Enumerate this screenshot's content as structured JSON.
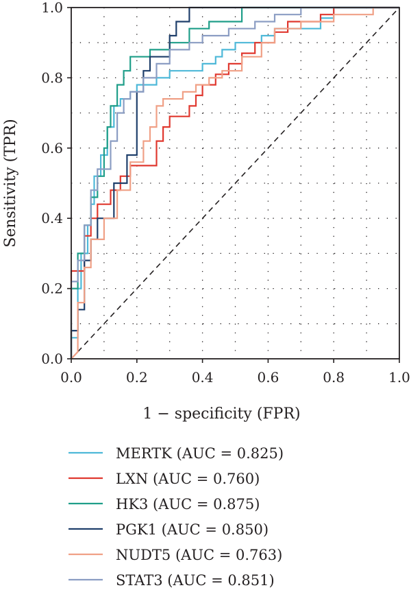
{
  "chart_data": {
    "type": "line",
    "title": "",
    "xlabel": "1 − specificity (FPR)",
    "ylabel": "Sensitivity (TPR)",
    "xlim": [
      0,
      1
    ],
    "ylim": [
      0,
      1
    ],
    "xticks": [
      "0.0",
      "0.2",
      "0.4",
      "0.6",
      "0.8",
      "1.0"
    ],
    "yticks": [
      "0.0",
      "0.2",
      "0.4",
      "0.6",
      "0.8",
      "1.0"
    ],
    "grid": "dotted",
    "legend_position": "below",
    "diagonal_reference": true,
    "series": [
      {
        "name": "MERTK (AUC = 0.825)",
        "color": "#4db8d8",
        "points": [
          [
            0,
            0
          ],
          [
            0,
            0.06
          ],
          [
            0.02,
            0.06
          ],
          [
            0.02,
            0.2
          ],
          [
            0.03,
            0.2
          ],
          [
            0.03,
            0.3
          ],
          [
            0.05,
            0.3
          ],
          [
            0.05,
            0.38
          ],
          [
            0.06,
            0.38
          ],
          [
            0.06,
            0.44
          ],
          [
            0.07,
            0.44
          ],
          [
            0.07,
            0.52
          ],
          [
            0.09,
            0.52
          ],
          [
            0.09,
            0.58
          ],
          [
            0.11,
            0.58
          ],
          [
            0.11,
            0.66
          ],
          [
            0.13,
            0.66
          ],
          [
            0.13,
            0.72
          ],
          [
            0.15,
            0.72
          ],
          [
            0.15,
            0.74
          ],
          [
            0.18,
            0.74
          ],
          [
            0.18,
            0.76
          ],
          [
            0.2,
            0.76
          ],
          [
            0.2,
            0.78
          ],
          [
            0.26,
            0.78
          ],
          [
            0.26,
            0.8
          ],
          [
            0.3,
            0.8
          ],
          [
            0.3,
            0.82
          ],
          [
            0.4,
            0.82
          ],
          [
            0.4,
            0.84
          ],
          [
            0.44,
            0.84
          ],
          [
            0.44,
            0.86
          ],
          [
            0.46,
            0.86
          ],
          [
            0.46,
            0.88
          ],
          [
            0.5,
            0.88
          ],
          [
            0.5,
            0.9
          ],
          [
            0.58,
            0.9
          ],
          [
            0.58,
            0.92
          ],
          [
            0.62,
            0.92
          ],
          [
            0.62,
            0.94
          ],
          [
            0.76,
            0.94
          ],
          [
            0.76,
            0.97
          ],
          [
            0.8,
            0.97
          ],
          [
            0.8,
            1.0
          ],
          [
            1,
            1
          ]
        ]
      },
      {
        "name": "LXN (AUC = 0.760)",
        "color": "#e0382f",
        "points": [
          [
            0,
            0
          ],
          [
            0,
            0.25
          ],
          [
            0.04,
            0.25
          ],
          [
            0.04,
            0.35
          ],
          [
            0.06,
            0.35
          ],
          [
            0.06,
            0.4
          ],
          [
            0.08,
            0.4
          ],
          [
            0.08,
            0.44
          ],
          [
            0.12,
            0.44
          ],
          [
            0.12,
            0.48
          ],
          [
            0.15,
            0.48
          ],
          [
            0.15,
            0.52
          ],
          [
            0.18,
            0.52
          ],
          [
            0.18,
            0.55
          ],
          [
            0.26,
            0.55
          ],
          [
            0.26,
            0.62
          ],
          [
            0.28,
            0.62
          ],
          [
            0.28,
            0.66
          ],
          [
            0.3,
            0.66
          ],
          [
            0.3,
            0.69
          ],
          [
            0.36,
            0.69
          ],
          [
            0.36,
            0.72
          ],
          [
            0.38,
            0.72
          ],
          [
            0.38,
            0.75
          ],
          [
            0.4,
            0.75
          ],
          [
            0.4,
            0.78
          ],
          [
            0.44,
            0.78
          ],
          [
            0.44,
            0.81
          ],
          [
            0.48,
            0.81
          ],
          [
            0.48,
            0.84
          ],
          [
            0.52,
            0.84
          ],
          [
            0.52,
            0.87
          ],
          [
            0.56,
            0.87
          ],
          [
            0.56,
            0.9
          ],
          [
            0.62,
            0.9
          ],
          [
            0.62,
            0.93
          ],
          [
            0.66,
            0.93
          ],
          [
            0.66,
            0.96
          ],
          [
            0.76,
            0.96
          ],
          [
            0.76,
            0.98
          ],
          [
            0.8,
            0.98
          ],
          [
            0.8,
            1.0
          ],
          [
            1,
            1
          ]
        ]
      },
      {
        "name": "HK3 (AUC = 0.875)",
        "color": "#1f9e89",
        "points": [
          [
            0,
            0
          ],
          [
            0,
            0.2
          ],
          [
            0.02,
            0.2
          ],
          [
            0.02,
            0.3
          ],
          [
            0.04,
            0.3
          ],
          [
            0.04,
            0.38
          ],
          [
            0.06,
            0.38
          ],
          [
            0.06,
            0.46
          ],
          [
            0.08,
            0.46
          ],
          [
            0.08,
            0.52
          ],
          [
            0.1,
            0.52
          ],
          [
            0.1,
            0.6
          ],
          [
            0.11,
            0.6
          ],
          [
            0.11,
            0.66
          ],
          [
            0.12,
            0.66
          ],
          [
            0.12,
            0.72
          ],
          [
            0.14,
            0.72
          ],
          [
            0.14,
            0.78
          ],
          [
            0.16,
            0.78
          ],
          [
            0.16,
            0.82
          ],
          [
            0.18,
            0.82
          ],
          [
            0.18,
            0.86
          ],
          [
            0.24,
            0.86
          ],
          [
            0.24,
            0.88
          ],
          [
            0.3,
            0.88
          ],
          [
            0.3,
            0.9
          ],
          [
            0.36,
            0.9
          ],
          [
            0.36,
            0.94
          ],
          [
            0.42,
            0.94
          ],
          [
            0.42,
            0.96
          ],
          [
            0.52,
            0.96
          ],
          [
            0.52,
            1.0
          ],
          [
            1,
            1
          ]
        ]
      },
      {
        "name": "PGK1 (AUC = 0.850)",
        "color": "#1f3f6b",
        "points": [
          [
            0,
            0
          ],
          [
            0,
            0.08
          ],
          [
            0.02,
            0.08
          ],
          [
            0.02,
            0.14
          ],
          [
            0.04,
            0.14
          ],
          [
            0.04,
            0.28
          ],
          [
            0.06,
            0.28
          ],
          [
            0.06,
            0.34
          ],
          [
            0.08,
            0.34
          ],
          [
            0.08,
            0.4
          ],
          [
            0.13,
            0.4
          ],
          [
            0.13,
            0.5
          ],
          [
            0.17,
            0.5
          ],
          [
            0.17,
            0.58
          ],
          [
            0.2,
            0.58
          ],
          [
            0.2,
            0.76
          ],
          [
            0.22,
            0.76
          ],
          [
            0.22,
            0.82
          ],
          [
            0.24,
            0.82
          ],
          [
            0.24,
            0.86
          ],
          [
            0.3,
            0.86
          ],
          [
            0.3,
            0.92
          ],
          [
            0.32,
            0.92
          ],
          [
            0.32,
            0.96
          ],
          [
            0.36,
            0.96
          ],
          [
            0.36,
            1.0
          ],
          [
            1,
            1
          ]
        ]
      },
      {
        "name": "NUDT5 (AUC = 0.763)",
        "color": "#f0a086",
        "points": [
          [
            0,
            0
          ],
          [
            0.02,
            0.02
          ],
          [
            0.02,
            0.16
          ],
          [
            0.04,
            0.16
          ],
          [
            0.04,
            0.26
          ],
          [
            0.06,
            0.26
          ],
          [
            0.06,
            0.34
          ],
          [
            0.1,
            0.34
          ],
          [
            0.1,
            0.4
          ],
          [
            0.14,
            0.4
          ],
          [
            0.14,
            0.48
          ],
          [
            0.18,
            0.48
          ],
          [
            0.18,
            0.56
          ],
          [
            0.22,
            0.56
          ],
          [
            0.22,
            0.62
          ],
          [
            0.24,
            0.62
          ],
          [
            0.24,
            0.66
          ],
          [
            0.26,
            0.66
          ],
          [
            0.26,
            0.72
          ],
          [
            0.28,
            0.72
          ],
          [
            0.28,
            0.74
          ],
          [
            0.34,
            0.74
          ],
          [
            0.34,
            0.76
          ],
          [
            0.38,
            0.76
          ],
          [
            0.38,
            0.78
          ],
          [
            0.42,
            0.78
          ],
          [
            0.42,
            0.8
          ],
          [
            0.46,
            0.8
          ],
          [
            0.46,
            0.82
          ],
          [
            0.52,
            0.82
          ],
          [
            0.52,
            0.86
          ],
          [
            0.58,
            0.86
          ],
          [
            0.58,
            0.9
          ],
          [
            0.62,
            0.9
          ],
          [
            0.62,
            0.94
          ],
          [
            0.7,
            0.94
          ],
          [
            0.7,
            0.96
          ],
          [
            0.8,
            0.96
          ],
          [
            0.8,
            0.98
          ],
          [
            0.92,
            0.98
          ],
          [
            0.92,
            1.0
          ],
          [
            1,
            1
          ]
        ]
      },
      {
        "name": "STAT3 (AUC = 0.851)",
        "color": "#8b9dc3",
        "points": [
          [
            0,
            0
          ],
          [
            0,
            0.22
          ],
          [
            0.02,
            0.22
          ],
          [
            0.02,
            0.28
          ],
          [
            0.04,
            0.28
          ],
          [
            0.04,
            0.38
          ],
          [
            0.06,
            0.38
          ],
          [
            0.06,
            0.48
          ],
          [
            0.08,
            0.48
          ],
          [
            0.08,
            0.54
          ],
          [
            0.12,
            0.54
          ],
          [
            0.12,
            0.62
          ],
          [
            0.14,
            0.62
          ],
          [
            0.14,
            0.7
          ],
          [
            0.16,
            0.7
          ],
          [
            0.16,
            0.74
          ],
          [
            0.18,
            0.74
          ],
          [
            0.18,
            0.76
          ],
          [
            0.22,
            0.76
          ],
          [
            0.22,
            0.8
          ],
          [
            0.26,
            0.8
          ],
          [
            0.26,
            0.84
          ],
          [
            0.3,
            0.84
          ],
          [
            0.3,
            0.88
          ],
          [
            0.36,
            0.88
          ],
          [
            0.36,
            0.9
          ],
          [
            0.4,
            0.9
          ],
          [
            0.4,
            0.92
          ],
          [
            0.48,
            0.92
          ],
          [
            0.48,
            0.94
          ],
          [
            0.56,
            0.94
          ],
          [
            0.56,
            0.96
          ],
          [
            0.62,
            0.96
          ],
          [
            0.62,
            0.98
          ],
          [
            0.7,
            0.98
          ],
          [
            0.7,
            1.0
          ],
          [
            1,
            1
          ]
        ]
      }
    ]
  }
}
